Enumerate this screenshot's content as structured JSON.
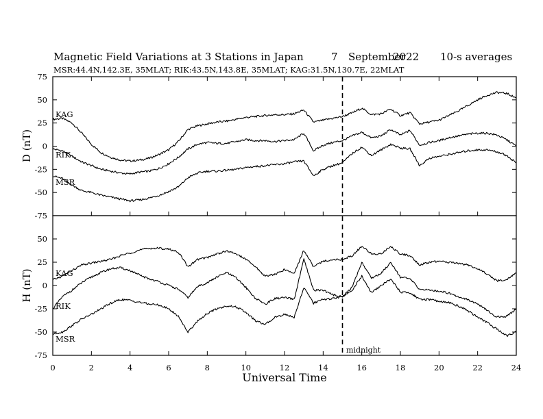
{
  "header": {
    "title": "Magnetic Field Variations at 3 Stations in Japan",
    "day": "7",
    "month": "September",
    "year": "2022",
    "averaging": "10-s averages",
    "stations_line": "MSR:44.4N,142.3E, 35MLAT;  RIK:43.5N,143.8E, 35MLAT;  KAG:31.5N,130.7E, 22MLAT"
  },
  "xaxis": {
    "label": "Universal Time",
    "ticks": [
      "0",
      "2",
      "4",
      "6",
      "8",
      "10",
      "12",
      "14",
      "16",
      "18",
      "20",
      "22",
      "24"
    ]
  },
  "midnight": {
    "label": "midnight",
    "hour": 15
  },
  "panels": {
    "D": {
      "ylabel": "D (nT)",
      "ticks": [
        "75",
        "50",
        "25",
        "0",
        "-25",
        "-50",
        "-75"
      ],
      "station_labels": {
        "KAG": "KAG",
        "RIK": "RIK",
        "MSR": "MSR"
      }
    },
    "H": {
      "ylabel": "H (nT)",
      "ticks": [
        "50",
        "25",
        "0",
        "-25",
        "-50",
        "-75"
      ],
      "station_labels": {
        "KAG": "KAG",
        "RIK": "RIK",
        "MSR": "MSR"
      }
    }
  },
  "colors": {
    "line": "#000000",
    "background": "#ffffff"
  },
  "chart_data": [
    {
      "type": "line",
      "panel": "D",
      "title": "Magnetic Field Variations at 3 Stations in Japan",
      "xlabel": "Universal Time",
      "ylabel": "D (nT)",
      "xlim": [
        0,
        24
      ],
      "ylim": [
        -75,
        75
      ],
      "x": [
        0,
        0.5,
        1,
        1.5,
        2,
        2.5,
        3,
        3.5,
        4,
        4.5,
        5,
        5.5,
        6,
        6.5,
        7,
        7.5,
        8,
        8.5,
        9,
        9.5,
        10,
        10.5,
        11,
        11.5,
        12,
        12.5,
        13,
        13.5,
        14,
        14.5,
        15,
        15.5,
        16,
        16.5,
        17,
        17.5,
        18,
        18.5,
        19,
        19.5,
        20,
        20.5,
        21,
        21.5,
        22,
        22.5,
        23,
        23.5,
        24
      ],
      "series": [
        {
          "name": "KAG",
          "values": [
            29,
            30,
            25,
            14,
            2,
            -7,
            -12,
            -15,
            -16,
            -15,
            -13,
            -9,
            -4,
            5,
            18,
            22,
            24,
            26,
            27,
            29,
            31,
            32,
            33,
            34,
            34,
            35,
            39,
            26,
            28,
            30,
            32,
            36,
            41,
            34,
            35,
            40,
            33,
            36,
            24,
            26,
            28,
            33,
            38,
            44,
            50,
            55,
            58,
            57,
            52
          ]
        },
        {
          "name": "RIK",
          "values": [
            -3,
            -5,
            -11,
            -17,
            -21,
            -25,
            -27,
            -29,
            -30,
            -28,
            -27,
            -24,
            -19,
            -12,
            -3,
            2,
            4,
            3,
            3,
            5,
            7,
            6,
            6,
            5,
            6,
            7,
            14,
            -5,
            1,
            4,
            6,
            11,
            15,
            9,
            11,
            18,
            12,
            17,
            1,
            4,
            6,
            9,
            11,
            13,
            14,
            14,
            12,
            7,
            0
          ]
        },
        {
          "name": "MSR",
          "values": [
            -32,
            -35,
            -42,
            -48,
            -50,
            -53,
            -55,
            -57,
            -59,
            -58,
            -56,
            -53,
            -49,
            -44,
            -34,
            -29,
            -27,
            -27,
            -26,
            -25,
            -23,
            -22,
            -21,
            -20,
            -19,
            -17,
            -16,
            -32,
            -25,
            -21,
            -18,
            -8,
            -1,
            -10,
            -4,
            2,
            -2,
            -3,
            -21,
            -13,
            -11,
            -9,
            -7,
            -5,
            -4,
            -4,
            -6,
            -10,
            -18
          ]
        }
      ]
    },
    {
      "type": "line",
      "panel": "H",
      "xlabel": "Universal Time",
      "ylabel": "H (nT)",
      "xlim": [
        0,
        24
      ],
      "ylim": [
        -75,
        75
      ],
      "x": [
        0,
        0.5,
        1,
        1.5,
        2,
        2.5,
        3,
        3.5,
        4,
        4.5,
        5,
        5.5,
        6,
        6.5,
        7,
        7.5,
        8,
        8.5,
        9,
        9.5,
        10,
        10.5,
        11,
        11.5,
        12,
        12.5,
        13,
        13.5,
        14,
        14.5,
        15,
        15.5,
        16,
        16.5,
        17,
        17.5,
        18,
        18.5,
        19,
        19.5,
        20,
        20.5,
        21,
        21.5,
        22,
        22.5,
        23,
        23.5,
        24
      ],
      "series": [
        {
          "name": "KAG",
          "values": [
            6,
            10,
            16,
            22,
            24,
            26,
            28,
            32,
            35,
            38,
            40,
            40,
            39,
            36,
            20,
            28,
            30,
            34,
            37,
            34,
            28,
            20,
            10,
            12,
            17,
            13,
            38,
            20,
            26,
            28,
            28,
            32,
            42,
            34,
            34,
            42,
            34,
            32,
            22,
            25,
            26,
            25,
            24,
            22,
            18,
            12,
            5,
            6,
            14
          ]
        },
        {
          "name": "RIK",
          "values": [
            -25,
            -12,
            -5,
            3,
            9,
            14,
            18,
            19,
            16,
            11,
            7,
            4,
            0,
            -4,
            -13,
            -1,
            3,
            9,
            14,
            8,
            -2,
            -14,
            -20,
            -14,
            -13,
            -15,
            28,
            -5,
            -5,
            -10,
            -12,
            -2,
            25,
            8,
            13,
            25,
            9,
            7,
            -4,
            -5,
            -6,
            -8,
            -12,
            -15,
            -20,
            -27,
            -34,
            -33,
            -25
          ]
        },
        {
          "name": "MSR",
          "values": [
            -52,
            -50,
            -43,
            -36,
            -31,
            -25,
            -19,
            -15,
            -16,
            -18,
            -20,
            -21,
            -25,
            -33,
            -50,
            -38,
            -30,
            -25,
            -22,
            -23,
            -29,
            -38,
            -42,
            -34,
            -31,
            -34,
            -2,
            -19,
            -15,
            -14,
            -12,
            -5,
            10,
            -8,
            0,
            7,
            -7,
            -8,
            -15,
            -15,
            -17,
            -18,
            -22,
            -27,
            -34,
            -40,
            -47,
            -54,
            -50
          ]
        }
      ]
    }
  ]
}
